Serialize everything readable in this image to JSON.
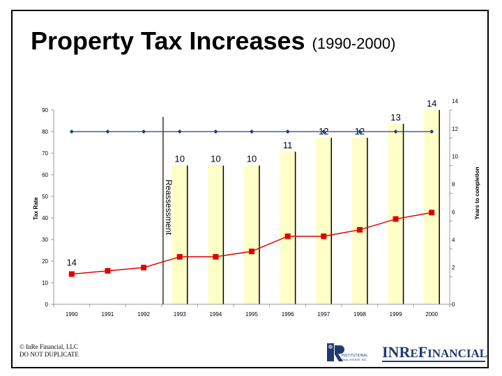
{
  "title": "Property Tax Increases",
  "subtitle": "(1990-2000)",
  "footer": {
    "copyright_line1": "© InRe Financial, LLC",
    "copyright_line2": "DO NOT DUPLICATE",
    "logo_institutional_text_1": "INSTITUTIONAL",
    "logo_institutional_text_2": "REAL ESTATE, INC.",
    "logo_brand_part1": "IN",
    "logo_brand_part2": "RE",
    "logo_brand_part3": "FINANCIAL"
  },
  "chart_data": {
    "type": "bar",
    "categories": [
      "1990",
      "1991",
      "1992",
      "1993",
      "1994",
      "1995",
      "1996",
      "1997",
      "1998",
      "1999",
      "2000"
    ],
    "left_axis": {
      "label": "Tax Rate",
      "ylim": [
        0,
        90
      ],
      "ticks": [
        0,
        10,
        20,
        30,
        40,
        50,
        60,
        70,
        80,
        90
      ]
    },
    "right_axis": {
      "label": "Years to completion",
      "ylim": [
        0,
        14
      ],
      "ticks": [
        0,
        2,
        4,
        6,
        8,
        10,
        12,
        14
      ]
    },
    "bars": {
      "axis": "right",
      "values": [
        null,
        null,
        null,
        10,
        10,
        10,
        11,
        12,
        12,
        13,
        14
      ],
      "labels": [
        "",
        "",
        "",
        "10",
        "10",
        "10",
        "11",
        "12",
        "12",
        "13",
        "14"
      ],
      "color": "#ffffc8"
    },
    "series": [
      {
        "axis": "left",
        "style": "line-diamond",
        "color": "#1f3a93",
        "values": [
          80,
          80,
          80,
          80,
          80,
          80,
          80,
          80,
          80,
          80,
          80
        ]
      },
      {
        "axis": "left",
        "style": "line-square",
        "color": "#e00000",
        "values": [
          14,
          15.5,
          17,
          22,
          22,
          24.5,
          31.5,
          31.5,
          34.5,
          39.5,
          42.5
        ],
        "point_labels": [
          "14",
          "",
          "",
          "",
          "",
          "",
          "",
          "",
          "",
          "",
          ""
        ]
      }
    ],
    "annotation": {
      "text": "Reassessment",
      "between": [
        "1992",
        "1993"
      ]
    },
    "grid": false
  }
}
